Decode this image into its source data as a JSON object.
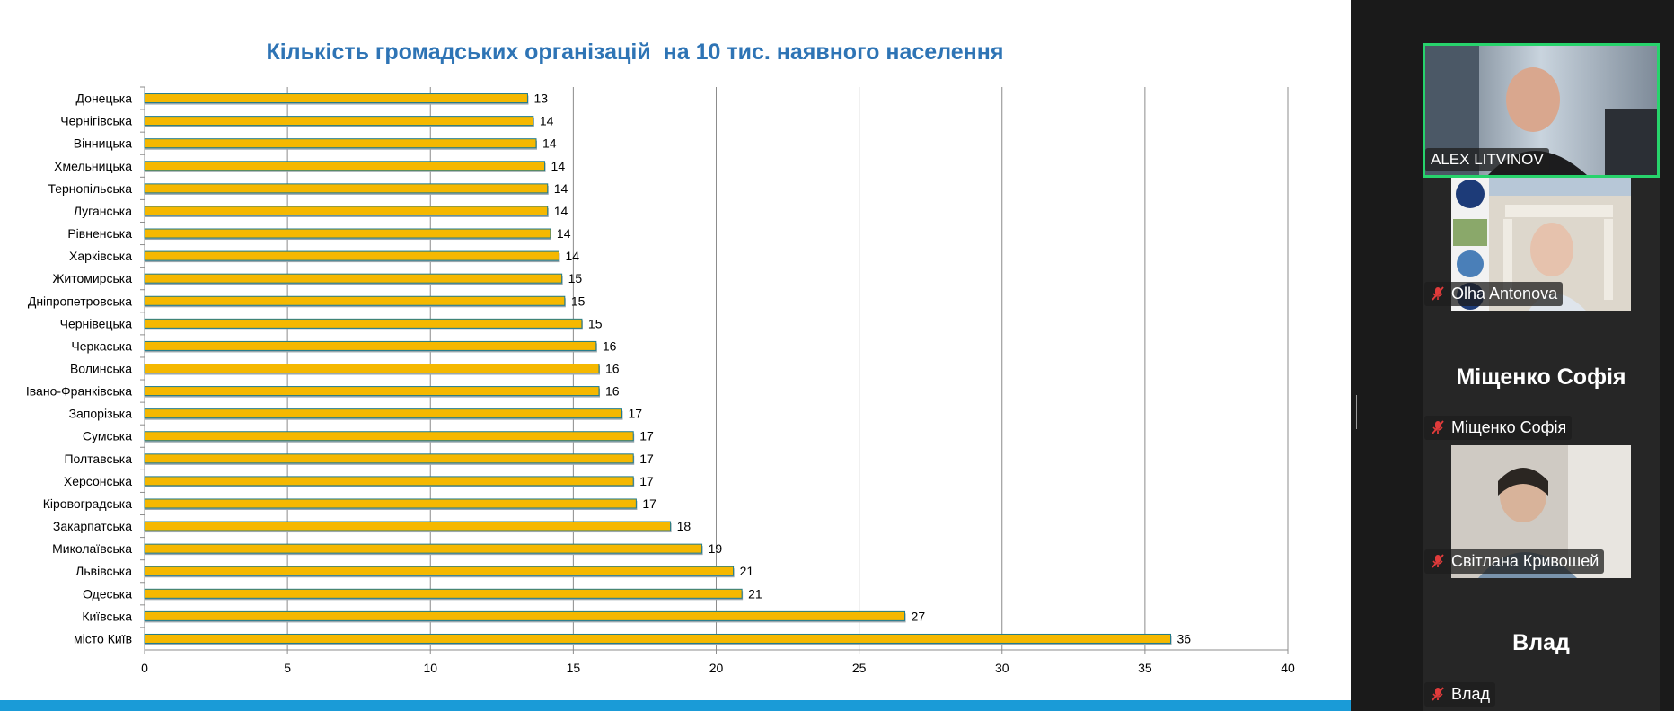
{
  "chart_data": {
    "type": "bar",
    "orientation": "horizontal",
    "title": "Кількість громадських організацій  на 10 тис. наявного населення",
    "categories": [
      "Донецька",
      "Чернігівська",
      "Вінницька",
      "Хмельницька",
      "Тернопільська",
      "Луганська",
      "Рівненська",
      "Харківська",
      "Житомирська",
      "Дніпропетровська",
      "Чернівецька",
      "Черкаська",
      "Волинська",
      "Івано-Франківська",
      "Запорізька",
      "Сумська",
      "Полтавська",
      "Херсонська",
      "Кіровоградська",
      "Закарпатська",
      "Миколаївська",
      "Львівська",
      "Одеська",
      "Київська",
      "місто Київ"
    ],
    "values": [
      13.4,
      13.6,
      13.7,
      14.0,
      14.1,
      14.1,
      14.2,
      14.5,
      14.6,
      14.7,
      15.3,
      15.8,
      15.9,
      15.9,
      16.7,
      17.1,
      17.1,
      17.1,
      17.2,
      18.4,
      19.5,
      20.6,
      20.9,
      26.6,
      35.9
    ],
    "data_labels": [
      "13",
      "14",
      "14",
      "14",
      "14",
      "14",
      "14",
      "14",
      "15",
      "15",
      "15",
      "16",
      "16",
      "16",
      "17",
      "17",
      "17",
      "17",
      "17",
      "18",
      "19",
      "21",
      "21",
      "27",
      "36"
    ],
    "xlim": [
      0,
      40
    ],
    "xticks": [
      0,
      5,
      10,
      15,
      20,
      25,
      30,
      35,
      40
    ],
    "grid": "vertical",
    "bar_color": "#f5b800",
    "bar_edge_color": "#1f7a8c"
  },
  "participants": [
    {
      "name": "ALEX LITVINOV",
      "muted": false,
      "active_speaker": true,
      "has_video": true
    },
    {
      "name": "Olha Antonova",
      "muted": true,
      "has_video": true
    },
    {
      "name": "Міщенко Софія",
      "muted": true,
      "has_video": false,
      "big_label": "Міщенко Софія"
    },
    {
      "name": "Світлана Кривошей",
      "muted": true,
      "has_video": true
    },
    {
      "name": "Влад",
      "muted": true,
      "has_video": false,
      "big_label": "Влад"
    }
  ],
  "icons": {
    "mute": "mic-muted-icon"
  },
  "colors": {
    "active_speaker_border": "#27d36c",
    "mute": "#e03b3b",
    "slide_bar": "#1a9bd7"
  }
}
